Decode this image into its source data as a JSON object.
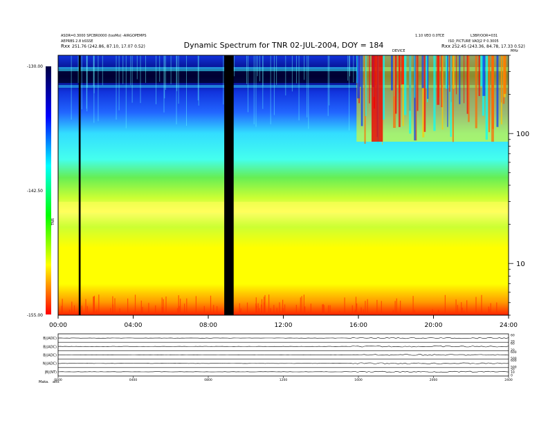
{
  "header": {
    "title": "Dynamic Spectrum for TNR 02-JUL-2004, DOY = 184",
    "left_line1": "ASDR=0.3000 SPCBR0000 (tooMo) -AIRGOPEMPS",
    "left_line2": "AEPRBS 2.8 bSSSE",
    "left_line3_label": "Rxx",
    "left_line3_value": "251.76 (242.86, 87.10, 17.07 0.52)",
    "right_line1a": "1.10 VEO 0.0TCE",
    "right_line1b": "L3BP/OOR=031",
    "right_line2": "ISO_PICTURE VAOJ2 P 0.3005",
    "right_line3_label": "Rxx",
    "right_line3_value": "252.45 (243.36, 84.78, 17.33 0.52)",
    "right_small_label": "DEVICE",
    "right_edge_label": "MHz"
  },
  "colorbar": {
    "axis_label": "TNR",
    "ticks": [
      "-130.00",
      "-142.50",
      "-155.00"
    ]
  },
  "chart_data": [
    {
      "type": "heatmap",
      "title": "Dynamic Spectrum for TNR 02-JUL-2004, DOY = 184",
      "x_tick_labels": [
        "00:00",
        "04:00",
        "08:00",
        "12:00",
        "16:00",
        "20:00",
        "24:00"
      ],
      "xlim_hours": [
        0,
        24
      ],
      "y_scale": "log",
      "y_tick_labels": [
        "100",
        "10"
      ],
      "y_ticks": [
        100,
        10
      ],
      "ylim": [
        4,
        400
      ],
      "colorbar_range": [
        -155,
        -130
      ],
      "colorbar_colors": [
        "#ff0000",
        "#ffff00",
        "#00ff00",
        "#00ffff",
        "#0000ff",
        "#000044"
      ],
      "data_gaps_hours": [
        [
          1.1,
          1.2
        ],
        [
          8.85,
          9.35
        ]
      ]
    },
    {
      "type": "line",
      "title": "",
      "panels": [
        {
          "label": "B|(ADC)",
          "right_ticks": [
            "60",
            "20"
          ]
        },
        {
          "label": "B|(ADC)",
          "right_ticks": [
            "60",
            "20"
          ]
        },
        {
          "label": "B|(ADC)",
          "right_ticks": [
            "600",
            "500"
          ]
        },
        {
          "label": "N|(ADC)",
          "right_ticks": [
            "600",
            "500"
          ]
        },
        {
          "label": "|B|(NT)",
          "right_ticks": [
            "50",
            "10",
            "0"
          ]
        }
      ],
      "x_tick_labels": [
        "0000",
        "0400",
        "0800",
        "1200",
        "1600",
        "2000",
        "2400"
      ],
      "xlim_hours": [
        0,
        24
      ]
    }
  ],
  "footer": {
    "label": "Maka.",
    "value": "atts"
  }
}
